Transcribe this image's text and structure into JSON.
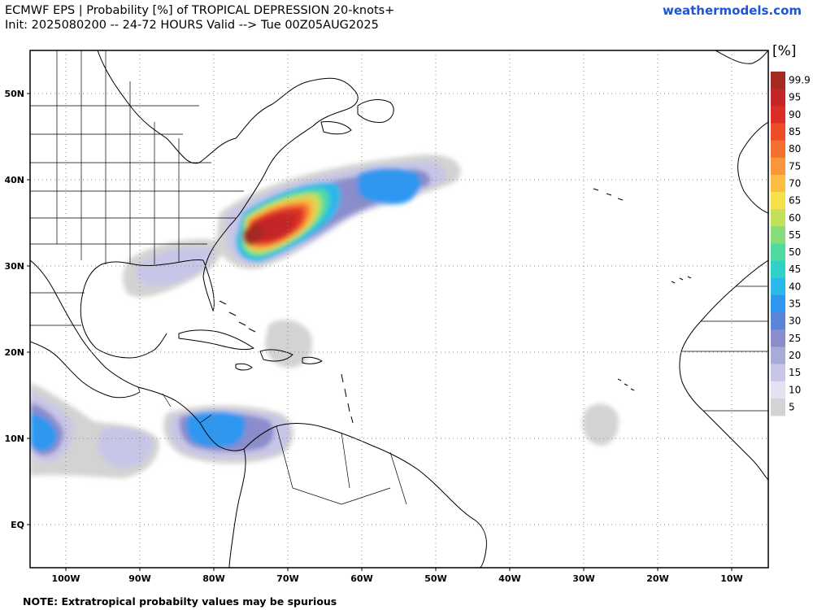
{
  "header": {
    "title_line1": "ECMWF EPS | Probability [%] of TROPICAL DEPRESSION 20-knots+",
    "title_line2": "Init: 2025080200 -- 24-72 HOURS Valid --> Tue 00Z05AUG2025",
    "credit": "weathermodels.com"
  },
  "map": {
    "lat_labels": [
      "50N",
      "40N",
      "30N",
      "20N",
      "10N",
      "EQ"
    ],
    "lon_labels": [
      "100W",
      "90W",
      "80W",
      "70W",
      "60W",
      "50W",
      "40W",
      "30W",
      "20W",
      "10W"
    ]
  },
  "colorbar": {
    "unit": "[%]",
    "labels": [
      "99.9",
      "95",
      "90",
      "85",
      "80",
      "75",
      "70",
      "65",
      "60",
      "55",
      "50",
      "45",
      "40",
      "35",
      "30",
      "25",
      "20",
      "15",
      "10",
      "5"
    ],
    "colors": [
      "#a52a22",
      "#c32628",
      "#dc2e26",
      "#ee4b28",
      "#f56f30",
      "#f9953a",
      "#fbbd43",
      "#f6e04c",
      "#c2e05a",
      "#86dc7a",
      "#4fdaa0",
      "#2fd2c8",
      "#2bb8ea",
      "#2f97f0",
      "#5a84d8",
      "#8a8ccc",
      "#a8aad8",
      "#c8c6e6",
      "#e4e2f0",
      "#d3d3d3"
    ]
  },
  "footnote": "NOTE: Extratropical probabilty values may be spurious"
}
